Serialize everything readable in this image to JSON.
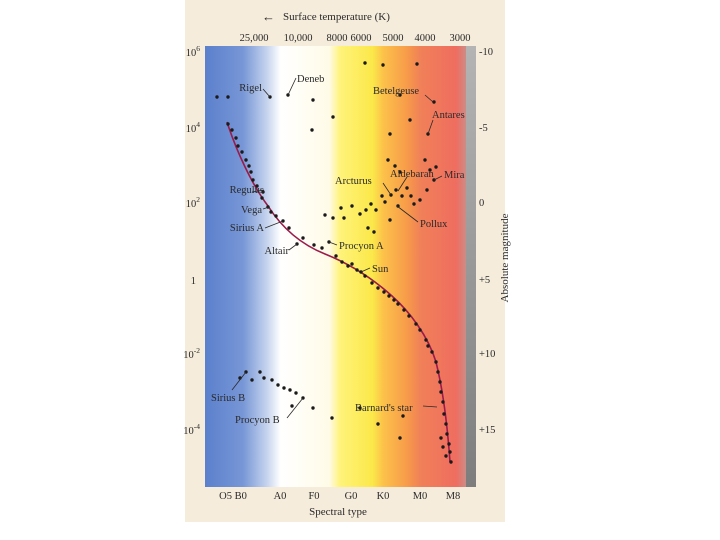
{
  "header": {
    "title": "Surface temperature (K)",
    "arrow_glyph": "←"
  },
  "temperature_ticks": [
    "25,000",
    "10,000",
    "8000",
    "6000",
    "5000",
    "4000",
    "3000"
  ],
  "luminosity_ticks": [
    {
      "base": "10",
      "exp": "6"
    },
    {
      "base": "10",
      "exp": "4"
    },
    {
      "base": "10",
      "exp": "2"
    },
    {
      "base": "1",
      "exp": ""
    },
    {
      "base": "10",
      "exp": "-2"
    },
    {
      "base": "10",
      "exp": "-4"
    }
  ],
  "magnitude_ticks": [
    "-10",
    "-5",
    "0",
    "+5",
    "+10",
    "+15"
  ],
  "magnitude_axis_title": "Absolute magnitude",
  "spectral_ticks": [
    "O5 B0",
    "A0",
    "F0",
    "G0",
    "K0",
    "M0",
    "M8"
  ],
  "spectral_axis_title": "Spectral type",
  "star_labels": {
    "rigel": "Rigel",
    "deneb": "Deneb",
    "betelgeuse": "Betelgeuse",
    "antares": "Antares",
    "mira": "Mira",
    "aldebaran": "Aldebaran",
    "arcturus": "Arcturus",
    "regulus": "Regulus",
    "vega": "Vega",
    "sirius_a": "Sirius A",
    "altair": "Altair",
    "procyon_a": "Procyon A",
    "pollux": "Pollux",
    "sun": "Sun",
    "sirius_b": "Sirius B",
    "procyon_b": "Procyon B",
    "barnards_star": "Barnard's star"
  },
  "colors": {
    "paper": "#f5ecdb",
    "main_sequence_line": "#9b1b4a",
    "dots": "#1a1a1a",
    "text": "#2a2a2a"
  }
}
